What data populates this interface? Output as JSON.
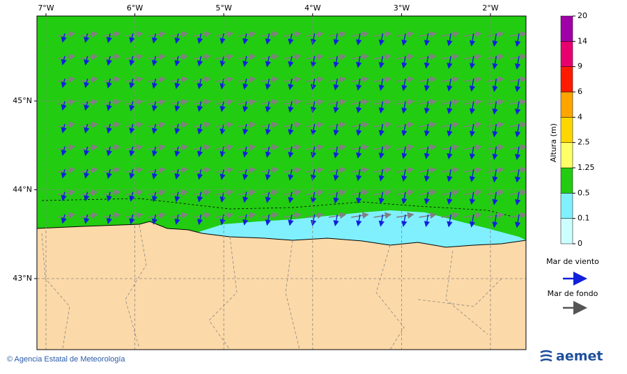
{
  "map": {
    "lon_labels": [
      "7°W",
      "6°W",
      "5°W",
      "4°W",
      "3°W",
      "2°W"
    ],
    "lat_labels": [
      "45°N",
      "44°N",
      "43°N"
    ]
  },
  "colorbar": {
    "label": "Altura (m)",
    "levels": [
      0,
      0.1,
      0.5,
      1.25,
      2.5,
      4,
      6,
      9,
      14,
      20
    ],
    "colors": [
      "#ccffff",
      "#80f0ff",
      "#22cc11",
      "#ffff66",
      "#ffd700",
      "#ffa500",
      "#ff1a00",
      "#e8006e",
      "#a000a8"
    ]
  },
  "legend": {
    "wind_sea": "Mar de viento",
    "swell": "Mar de fondo"
  },
  "footer": {
    "credit": "© Agencia Estatal de Meteorología",
    "logo": "aemet"
  }
}
